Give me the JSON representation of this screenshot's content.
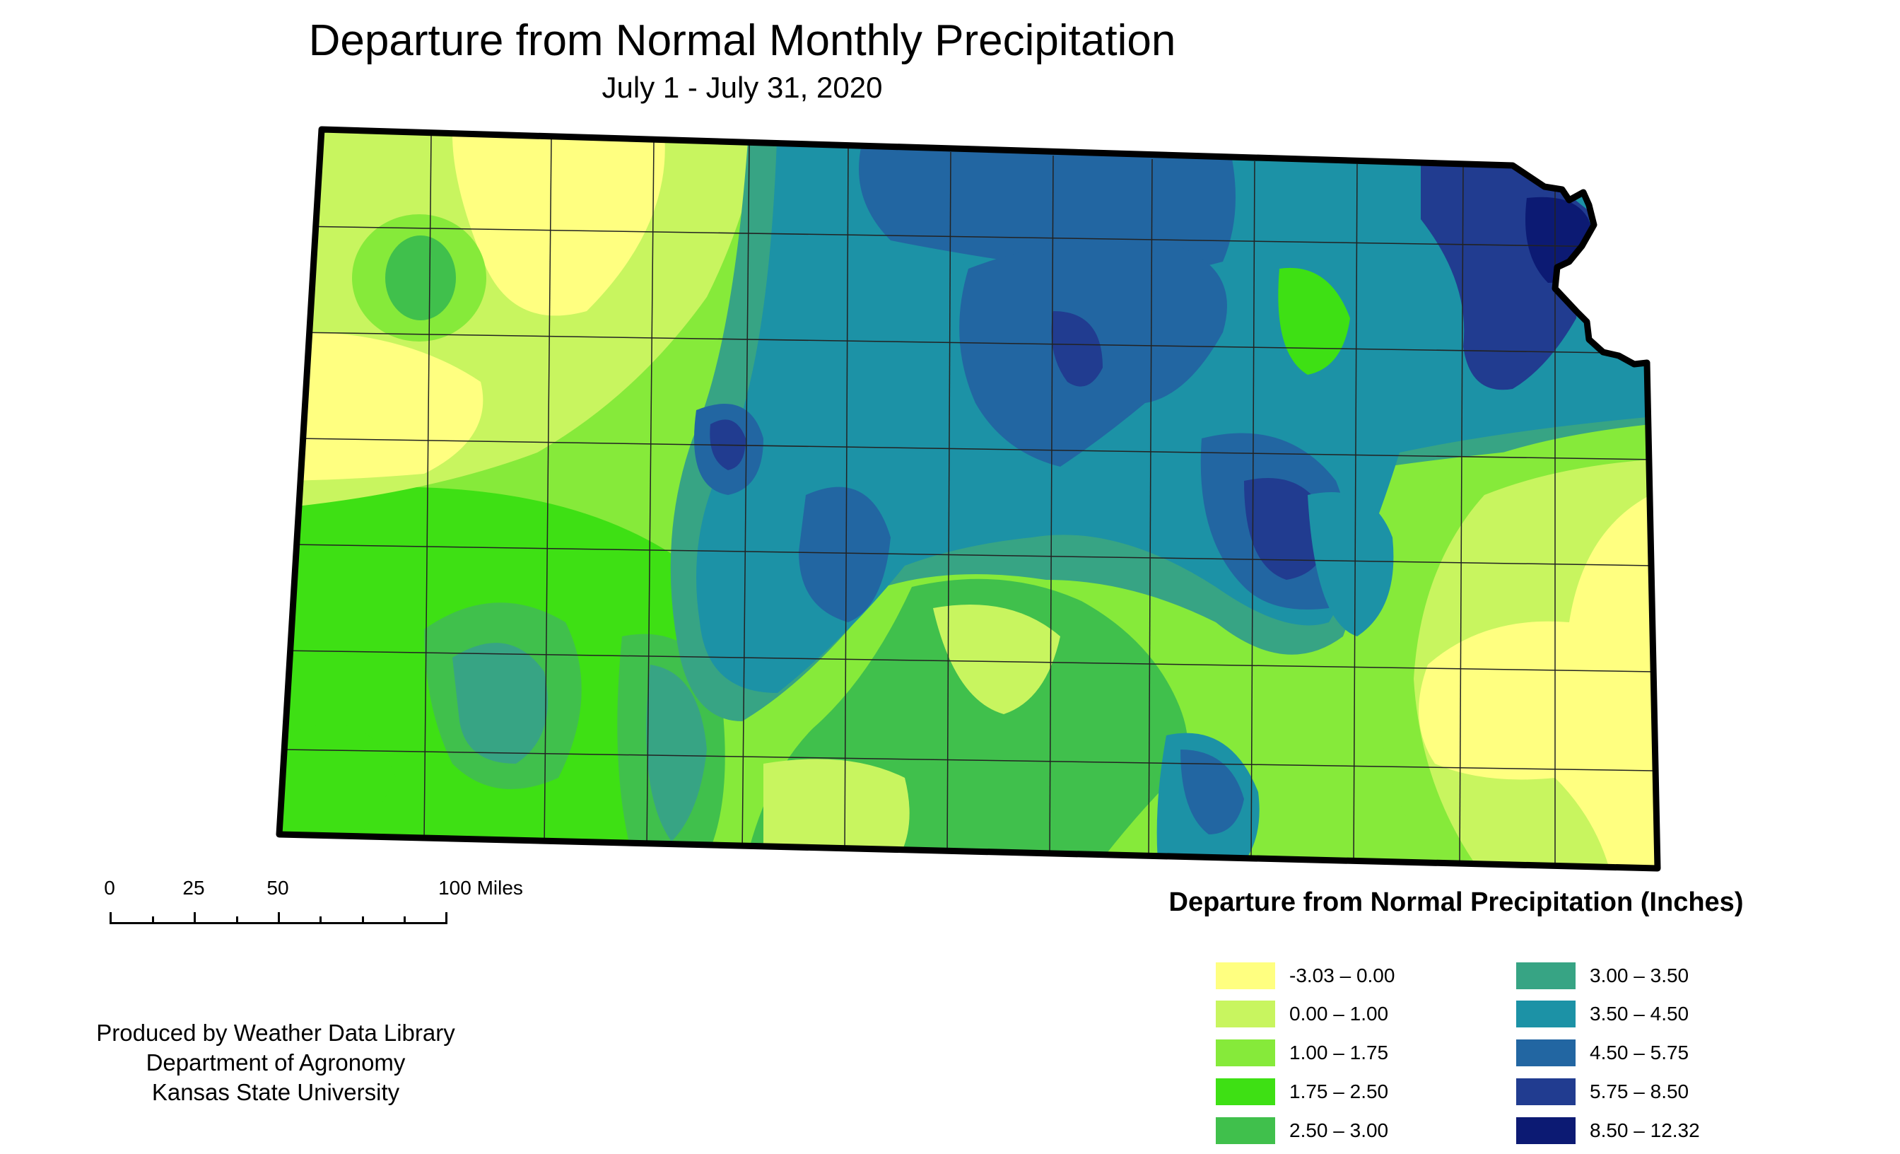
{
  "title": "Departure from Normal Monthly Precipitation",
  "subtitle": "July 1 - July 31, 2020",
  "scale_bar": {
    "labels": [
      "0",
      "25",
      "50",
      "100 Miles"
    ],
    "label_miles": [
      0,
      25,
      50,
      100
    ]
  },
  "credit": {
    "line1": "Produced by Weather Data Library",
    "line2": "Department of Agronomy",
    "line3": "Kansas State University"
  },
  "legend": {
    "title": "Departure from Normal Precipitation (Inches)",
    "items": [
      {
        "label": "-3.03 – 0.00",
        "color": "#ffff80"
      },
      {
        "label": "0.00 – 1.00",
        "color": "#c8f55f"
      },
      {
        "label": "1.00 – 1.75",
        "color": "#86ea3a"
      },
      {
        "label": "1.75 – 2.50",
        "color": "#3ee014"
      },
      {
        "label": "2.50 – 3.00",
        "color": "#40c04c"
      },
      {
        "label": "3.00 – 3.50",
        "color": "#37a484"
      },
      {
        "label": "3.50 – 4.50",
        "color": "#1c92a6"
      },
      {
        "label": "4.50 – 5.75",
        "color": "#2266a2"
      },
      {
        "label": "5.75 – 8.50",
        "color": "#213c90"
      },
      {
        "label": "8.50 – 12.32",
        "color": "#0c1a73"
      }
    ]
  },
  "map": {
    "region": "Kansas",
    "outline_color": "#000000",
    "county_line_color": "#222222"
  }
}
